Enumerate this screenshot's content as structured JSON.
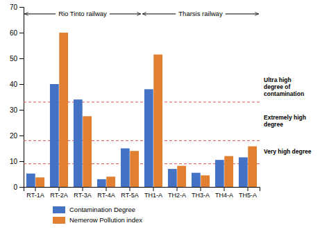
{
  "chart_data": {
    "type": "bar",
    "categories": [
      "RT-1A",
      "RT-2A",
      "RT-3A",
      "RT-4A",
      "RT-5A",
      "TH1-A",
      "TH2-A",
      "TH3-A",
      "TH4-A",
      "TH5-A"
    ],
    "series": [
      {
        "name": "Contamination Degree",
        "color": "#4472C4",
        "values": [
          5.2,
          40.0,
          34.0,
          3.0,
          15.0,
          38.0,
          7.0,
          5.5,
          10.5,
          11.5
        ]
      },
      {
        "name": "Nemerow Pollution index",
        "color": "#E08030",
        "values": [
          3.7,
          60.0,
          27.5,
          4.0,
          14.0,
          51.5,
          8.2,
          4.5,
          12.0,
          15.8
        ]
      }
    ],
    "ylim": [
      0,
      70
    ],
    "yticks": [
      0,
      10,
      20,
      30,
      40,
      50,
      60,
      70
    ],
    "grid": false,
    "hlines": [
      {
        "value": 9.0,
        "color": "#E05050",
        "line_style": "dashed"
      },
      {
        "value": 18.0,
        "color": "#E05050",
        "line_style": "dashed"
      },
      {
        "value": 33.0,
        "color": "#E05050",
        "line_style": "dashed"
      }
    ],
    "annotations": [
      "Ultra high\ndegree of\ncontamination",
      "Extremely high\ndegree",
      "Very high degree"
    ],
    "groups": [
      {
        "label": "Rio Tinto railway",
        "start": "RT-1A",
        "end": "RT-5A"
      },
      {
        "label": "Tharsis railway",
        "start": "TH1-A",
        "end": "TH5-A"
      }
    ]
  }
}
